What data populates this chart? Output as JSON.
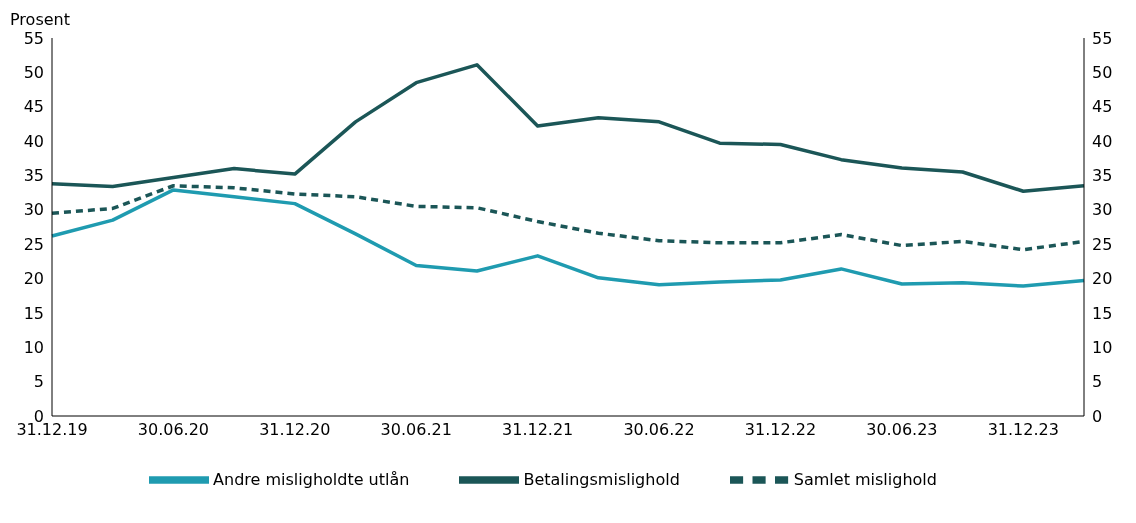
{
  "chart_data": {
    "type": "line",
    "ylabel": "Prosent",
    "categories": [
      "31.12.19",
      null,
      "30.06.20",
      null,
      "31.12.20",
      null,
      "30.06.21",
      null,
      "31.12.21",
      null,
      "30.06.22",
      null,
      "31.12.22",
      null,
      "30.06.23",
      null,
      "31.12.23",
      null
    ],
    "series": [
      {
        "name": "Betalingsmislighold",
        "color": "#1b5657",
        "line_style": "solid",
        "values": [
          33.8,
          33.4,
          34.7,
          36.0,
          35.2,
          42.8,
          48.5,
          51.1,
          42.2,
          43.4,
          42.8,
          39.7,
          39.5,
          37.3,
          36.1,
          35.5,
          32.7,
          33.5
        ]
      },
      {
        "name": "Andre misligholdte utlån",
        "color": "#1f9bb0",
        "line_style": "solid",
        "values": [
          26.2,
          28.5,
          32.9,
          31.9,
          30.9,
          26.5,
          21.9,
          21.1,
          23.3,
          20.1,
          19.1,
          19.5,
          19.8,
          21.4,
          19.2,
          19.4,
          18.9,
          19.7
        ]
      },
      {
        "name": "Samlet mislighold",
        "color": "#1b5657",
        "line_style": "dashed",
        "values": [
          29.5,
          30.2,
          33.5,
          33.2,
          32.3,
          31.9,
          30.5,
          30.3,
          28.3,
          26.6,
          25.5,
          25.2,
          25.2,
          26.4,
          24.8,
          25.4,
          24.2,
          25.4
        ]
      }
    ],
    "ylim": [
      0,
      55
    ],
    "yticks": [
      0,
      5,
      10,
      15,
      20,
      25,
      30,
      35,
      40,
      45,
      50,
      55
    ],
    "y2lim": [
      0,
      55
    ],
    "y2ticks": [
      0,
      5,
      10,
      15,
      20,
      25,
      30,
      35,
      40,
      45,
      50,
      55
    ],
    "grid": false,
    "legend": "bottom",
    "marker": "none"
  }
}
